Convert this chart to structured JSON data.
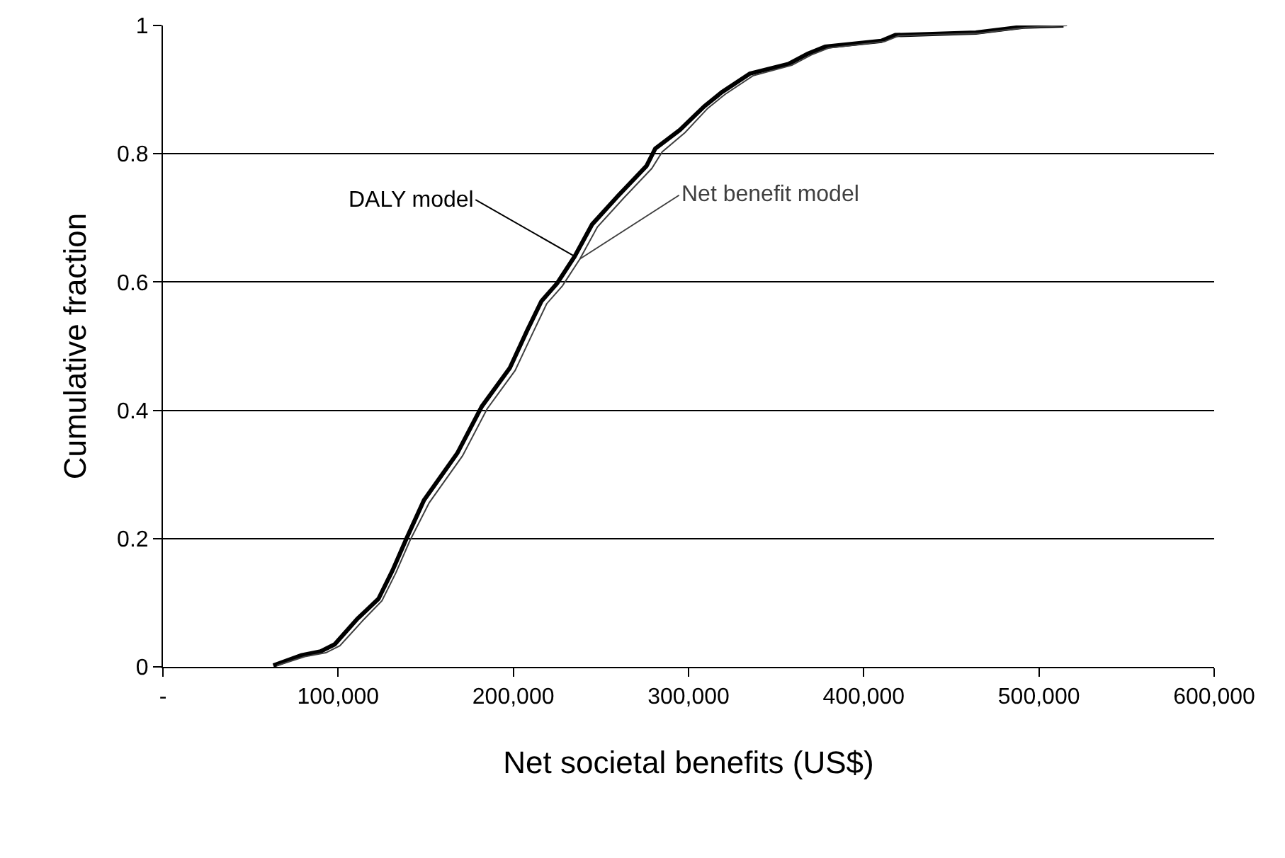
{
  "chart_data": {
    "type": "line",
    "xlabel": "Net societal benefits (US$)",
    "ylabel": "Cumulative fraction",
    "series": [
      {
        "name": "DALY model",
        "color": "#000000",
        "x": [
          63000,
          79000,
          90000,
          98000,
          111000,
          123000,
          131000,
          139000,
          149000,
          168000,
          182000,
          198000,
          208000,
          216000,
          225000,
          235000,
          245000,
          260000,
          276000,
          281000,
          295000,
          309000,
          319000,
          335000,
          357000,
          368000,
          378000,
          410000,
          418000,
          464000,
          491000,
          514000
        ],
        "values": [
          0.002,
          0.018,
          0.024,
          0.035,
          0.075,
          0.106,
          0.15,
          0.2,
          0.26,
          0.333,
          0.406,
          0.466,
          0.525,
          0.57,
          0.598,
          0.64,
          0.69,
          0.735,
          0.781,
          0.808,
          0.837,
          0.874,
          0.896,
          0.925,
          0.94,
          0.956,
          0.967,
          0.976,
          0.985,
          0.989,
          0.998,
          1.0
        ]
      },
      {
        "name": "Net benefit model",
        "color": "#404040",
        "x": [
          65000,
          81000,
          93000,
          101000,
          114000,
          125000,
          133000,
          141000,
          152000,
          171000,
          185000,
          201000,
          211000,
          219000,
          228000,
          238000,
          248000,
          263000,
          279000,
          285000,
          298000,
          311000,
          321000,
          337000,
          359000,
          370000,
          380000,
          412000,
          420000,
          466000,
          493000,
          516000
        ],
        "values": [
          0.002,
          0.016,
          0.022,
          0.033,
          0.072,
          0.103,
          0.147,
          0.197,
          0.256,
          0.329,
          0.402,
          0.462,
          0.52,
          0.566,
          0.594,
          0.636,
          0.686,
          0.731,
          0.777,
          0.803,
          0.833,
          0.871,
          0.893,
          0.922,
          0.938,
          0.954,
          0.965,
          0.975,
          0.984,
          0.988,
          0.997,
          1.0
        ]
      }
    ],
    "xlim": [
      0,
      600000
    ],
    "ylim": [
      0,
      1
    ],
    "xticks": [
      {
        "value": 0,
        "label": "-"
      },
      {
        "value": 100000,
        "label": "100,000"
      },
      {
        "value": 200000,
        "label": "200,000"
      },
      {
        "value": 300000,
        "label": "300,000"
      },
      {
        "value": 400000,
        "label": "400,000"
      },
      {
        "value": 500000,
        "label": "500,000"
      },
      {
        "value": 600000,
        "label": "600,000"
      }
    ],
    "yticks": [
      0,
      0.2,
      0.4,
      0.6,
      0.8,
      1
    ],
    "grid": "y",
    "legend": false,
    "marker": "none",
    "line_style": "solid"
  }
}
